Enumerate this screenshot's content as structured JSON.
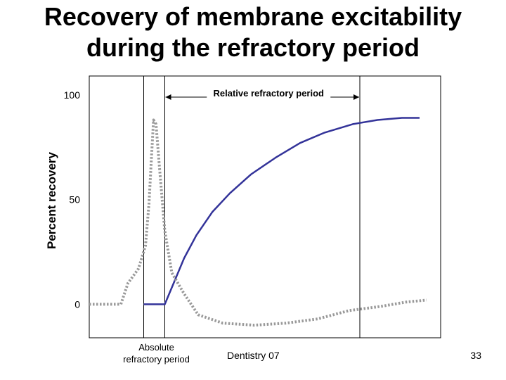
{
  "title": {
    "line1": "Recovery of membrane excitability",
    "line2": "during the refractory period"
  },
  "footer": {
    "left_text": "Dentistry 07",
    "page_number": "33"
  },
  "colors": {
    "recovery_line": "#333399",
    "dotted_line": "#999999",
    "frame": "#000000"
  },
  "chart_data": {
    "type": "line",
    "title": "Recovery of membrane excitability during the refractory period",
    "xlabel": "",
    "ylabel": "Percent recovery",
    "yticks": [
      {
        "value": 0,
        "label": "0"
      },
      {
        "value": 50,
        "label": "50"
      },
      {
        "value": 100,
        "label": "100"
      }
    ],
    "ylim": [
      -16,
      109
    ],
    "xlim": [
      0,
      100
    ],
    "grid": false,
    "legend": "none",
    "series": [
      {
        "style": "solid",
        "points": [
          [
            15.5,
            0
          ],
          [
            21.5,
            0
          ],
          [
            24,
            10
          ],
          [
            27,
            22
          ],
          [
            30.5,
            33
          ],
          [
            35,
            44
          ],
          [
            40,
            53
          ],
          [
            46,
            62
          ],
          [
            53,
            70
          ],
          [
            60,
            77
          ],
          [
            67,
            82
          ],
          [
            75,
            86
          ],
          [
            82,
            88
          ],
          [
            89,
            89
          ],
          [
            94,
            89
          ]
        ]
      },
      {
        "style": "dotted",
        "points": [
          [
            0,
            0
          ],
          [
            9,
            0
          ],
          [
            11,
            10
          ],
          [
            14,
            17
          ],
          [
            16,
            28
          ],
          [
            17,
            48
          ],
          [
            17.7,
            70
          ],
          [
            18.3,
            88
          ],
          [
            19,
            86
          ],
          [
            20,
            65
          ],
          [
            21.5,
            35
          ],
          [
            23.5,
            15
          ],
          [
            27,
            5
          ],
          [
            31,
            -5
          ],
          [
            38,
            -9
          ],
          [
            47,
            -10
          ],
          [
            56,
            -9
          ],
          [
            65,
            -7
          ],
          [
            74,
            -3
          ],
          [
            83,
            -1
          ],
          [
            90,
            1
          ],
          [
            96,
            2
          ]
        ]
      }
    ],
    "markers": [
      {
        "x": 15.5
      },
      {
        "x": 21.5
      },
      {
        "x": 77
      }
    ],
    "annotations": {
      "relative_refractory_label": "Relative refractory period",
      "absolute_refractory_label_line1": "Absolute",
      "absolute_refractory_label_line2": "refractory period"
    }
  }
}
